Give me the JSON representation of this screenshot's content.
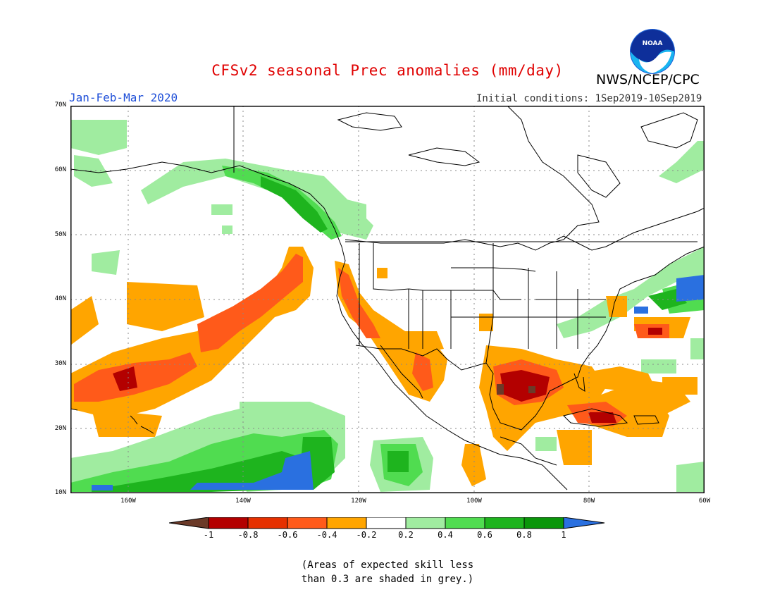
{
  "header": {
    "title": "CFSv2 seasonal Prec anomalies (mm/day)",
    "organization": "NWS/NCEP/CPC",
    "logo_text": "NOAA",
    "season": "Jan-Feb-Mar 2020",
    "initial_conditions": "Initial conditions: 1Sep2019-10Sep2019"
  },
  "map": {
    "lat_labels": [
      "70N",
      "60N",
      "50N",
      "40N",
      "30N",
      "20N",
      "10N"
    ],
    "lon_labels": [
      "160W",
      "140W",
      "120W",
      "100W",
      "80W",
      "60W"
    ],
    "lat_range": [
      10,
      70
    ],
    "lon_range": [
      -170,
      -60
    ]
  },
  "colorbar": {
    "labels": [
      "-1",
      "-0.8",
      "-0.6",
      "-0.4",
      "-0.2",
      "0.2",
      "0.4",
      "0.6",
      "0.8",
      "1"
    ],
    "colors": [
      "#6b3a28",
      "#b30000",
      "#e63000",
      "#ff5a1a",
      "#ffa500",
      "#ffffff",
      "#a0eca0",
      "#50dc50",
      "#1eb41e",
      "#0a960a",
      "#2a70e0"
    ]
  },
  "footnote": {
    "line1": "(Areas of expected skill less",
    "line2": "than 0.3 are shaded in grey.)"
  }
}
